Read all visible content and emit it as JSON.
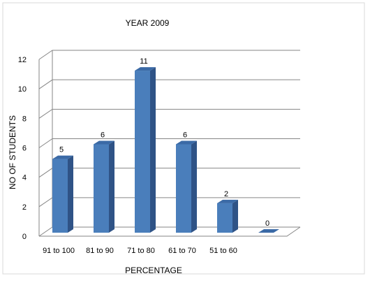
{
  "chart_data": {
    "type": "bar",
    "title": "YEAR 2009",
    "xlabel": "PERCENTAGE",
    "ylabel": "NO OF STUDENTS",
    "categories": [
      "91 to 100",
      "81 to 90",
      "71 to 80",
      "61 to 70",
      "51 to 60",
      ""
    ],
    "values": [
      5,
      6,
      11,
      6,
      2,
      0
    ],
    "ylim": [
      0,
      12
    ],
    "yticks": [
      0,
      2,
      4,
      6,
      8,
      10,
      12
    ],
    "grid": true,
    "legend": "none",
    "style": "3d-clustered-column",
    "colors": {
      "bar_front": "#4a7ebb",
      "bar_side": "#2f5386",
      "bar_top": "#3b6aa6",
      "grid": "#868686"
    }
  }
}
